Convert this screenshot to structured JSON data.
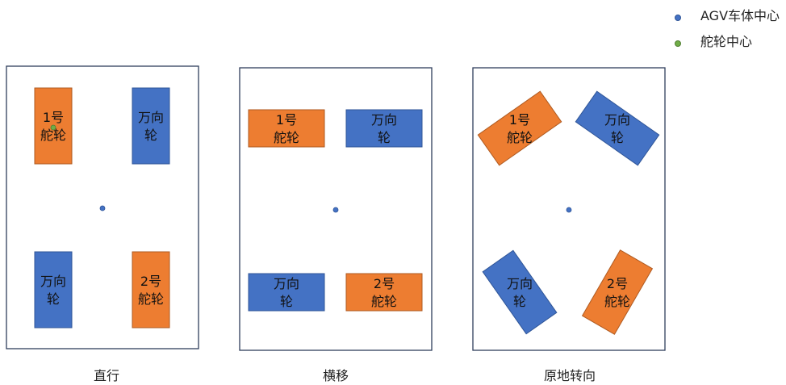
{
  "legend": {
    "items": [
      {
        "label": "AGV车体中心",
        "color": "#4472C4"
      },
      {
        "label": "舵轮中心",
        "color": "#70AD47"
      }
    ]
  },
  "colors": {
    "steering_wheel": "#ED7D31",
    "caster_wheel": "#4472C4",
    "frame_stroke": "#2F3E5C",
    "agv_center": "#4472C4",
    "steering_center": "#70AD47"
  },
  "frames": [
    {
      "title": "直行",
      "wheels": [
        {
          "kind": "steering",
          "line1": "1号",
          "line2": "舵轮",
          "angle": 0,
          "show_center": true
        },
        {
          "kind": "caster",
          "line1": "万向",
          "line2": "轮",
          "angle": 0
        },
        {
          "kind": "caster",
          "line1": "万向",
          "line2": "轮",
          "angle": 0
        },
        {
          "kind": "steering",
          "line1": "2号",
          "line2": "舵轮",
          "angle": 0
        }
      ]
    },
    {
      "title": "横移",
      "wheels": [
        {
          "kind": "steering",
          "line1": "1号",
          "line2": "舵轮",
          "angle": 90
        },
        {
          "kind": "caster",
          "line1": "万向",
          "line2": "轮",
          "angle": 90
        },
        {
          "kind": "caster",
          "line1": "万向",
          "line2": "轮",
          "angle": 90
        },
        {
          "kind": "steering",
          "line1": "2号",
          "line2": "舵轮",
          "angle": 90
        }
      ]
    },
    {
      "title": "原地转向",
      "wheels": [
        {
          "kind": "steering",
          "line1": "1号",
          "line2": "舵轮",
          "angle": 55
        },
        {
          "kind": "caster",
          "line1": "万向",
          "line2": "轮",
          "angle": -55
        },
        {
          "kind": "caster",
          "line1": "万向",
          "line2": "轮",
          "angle": -35
        },
        {
          "kind": "steering",
          "line1": "2号",
          "line2": "舵轮",
          "angle": 30
        }
      ]
    }
  ]
}
